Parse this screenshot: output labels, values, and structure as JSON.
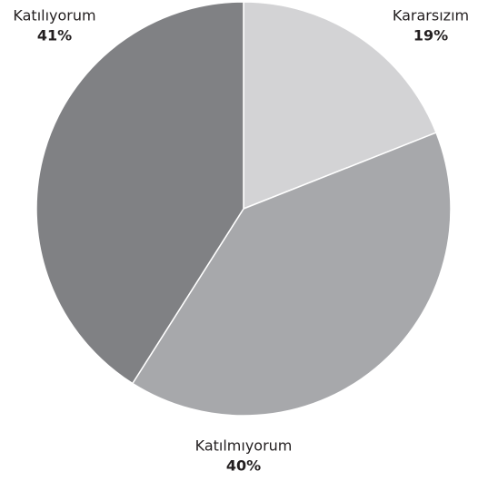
{
  "chart_data": {
    "type": "pie",
    "categories": [
      "Kararsızım",
      "Katılmıyorum",
      "Katılıyorum"
    ],
    "values": [
      19,
      40,
      41
    ],
    "value_labels": [
      "19%",
      "40%",
      "41%"
    ],
    "colors": [
      "#d3d3d5",
      "#a7a8ab",
      "#808184"
    ]
  }
}
